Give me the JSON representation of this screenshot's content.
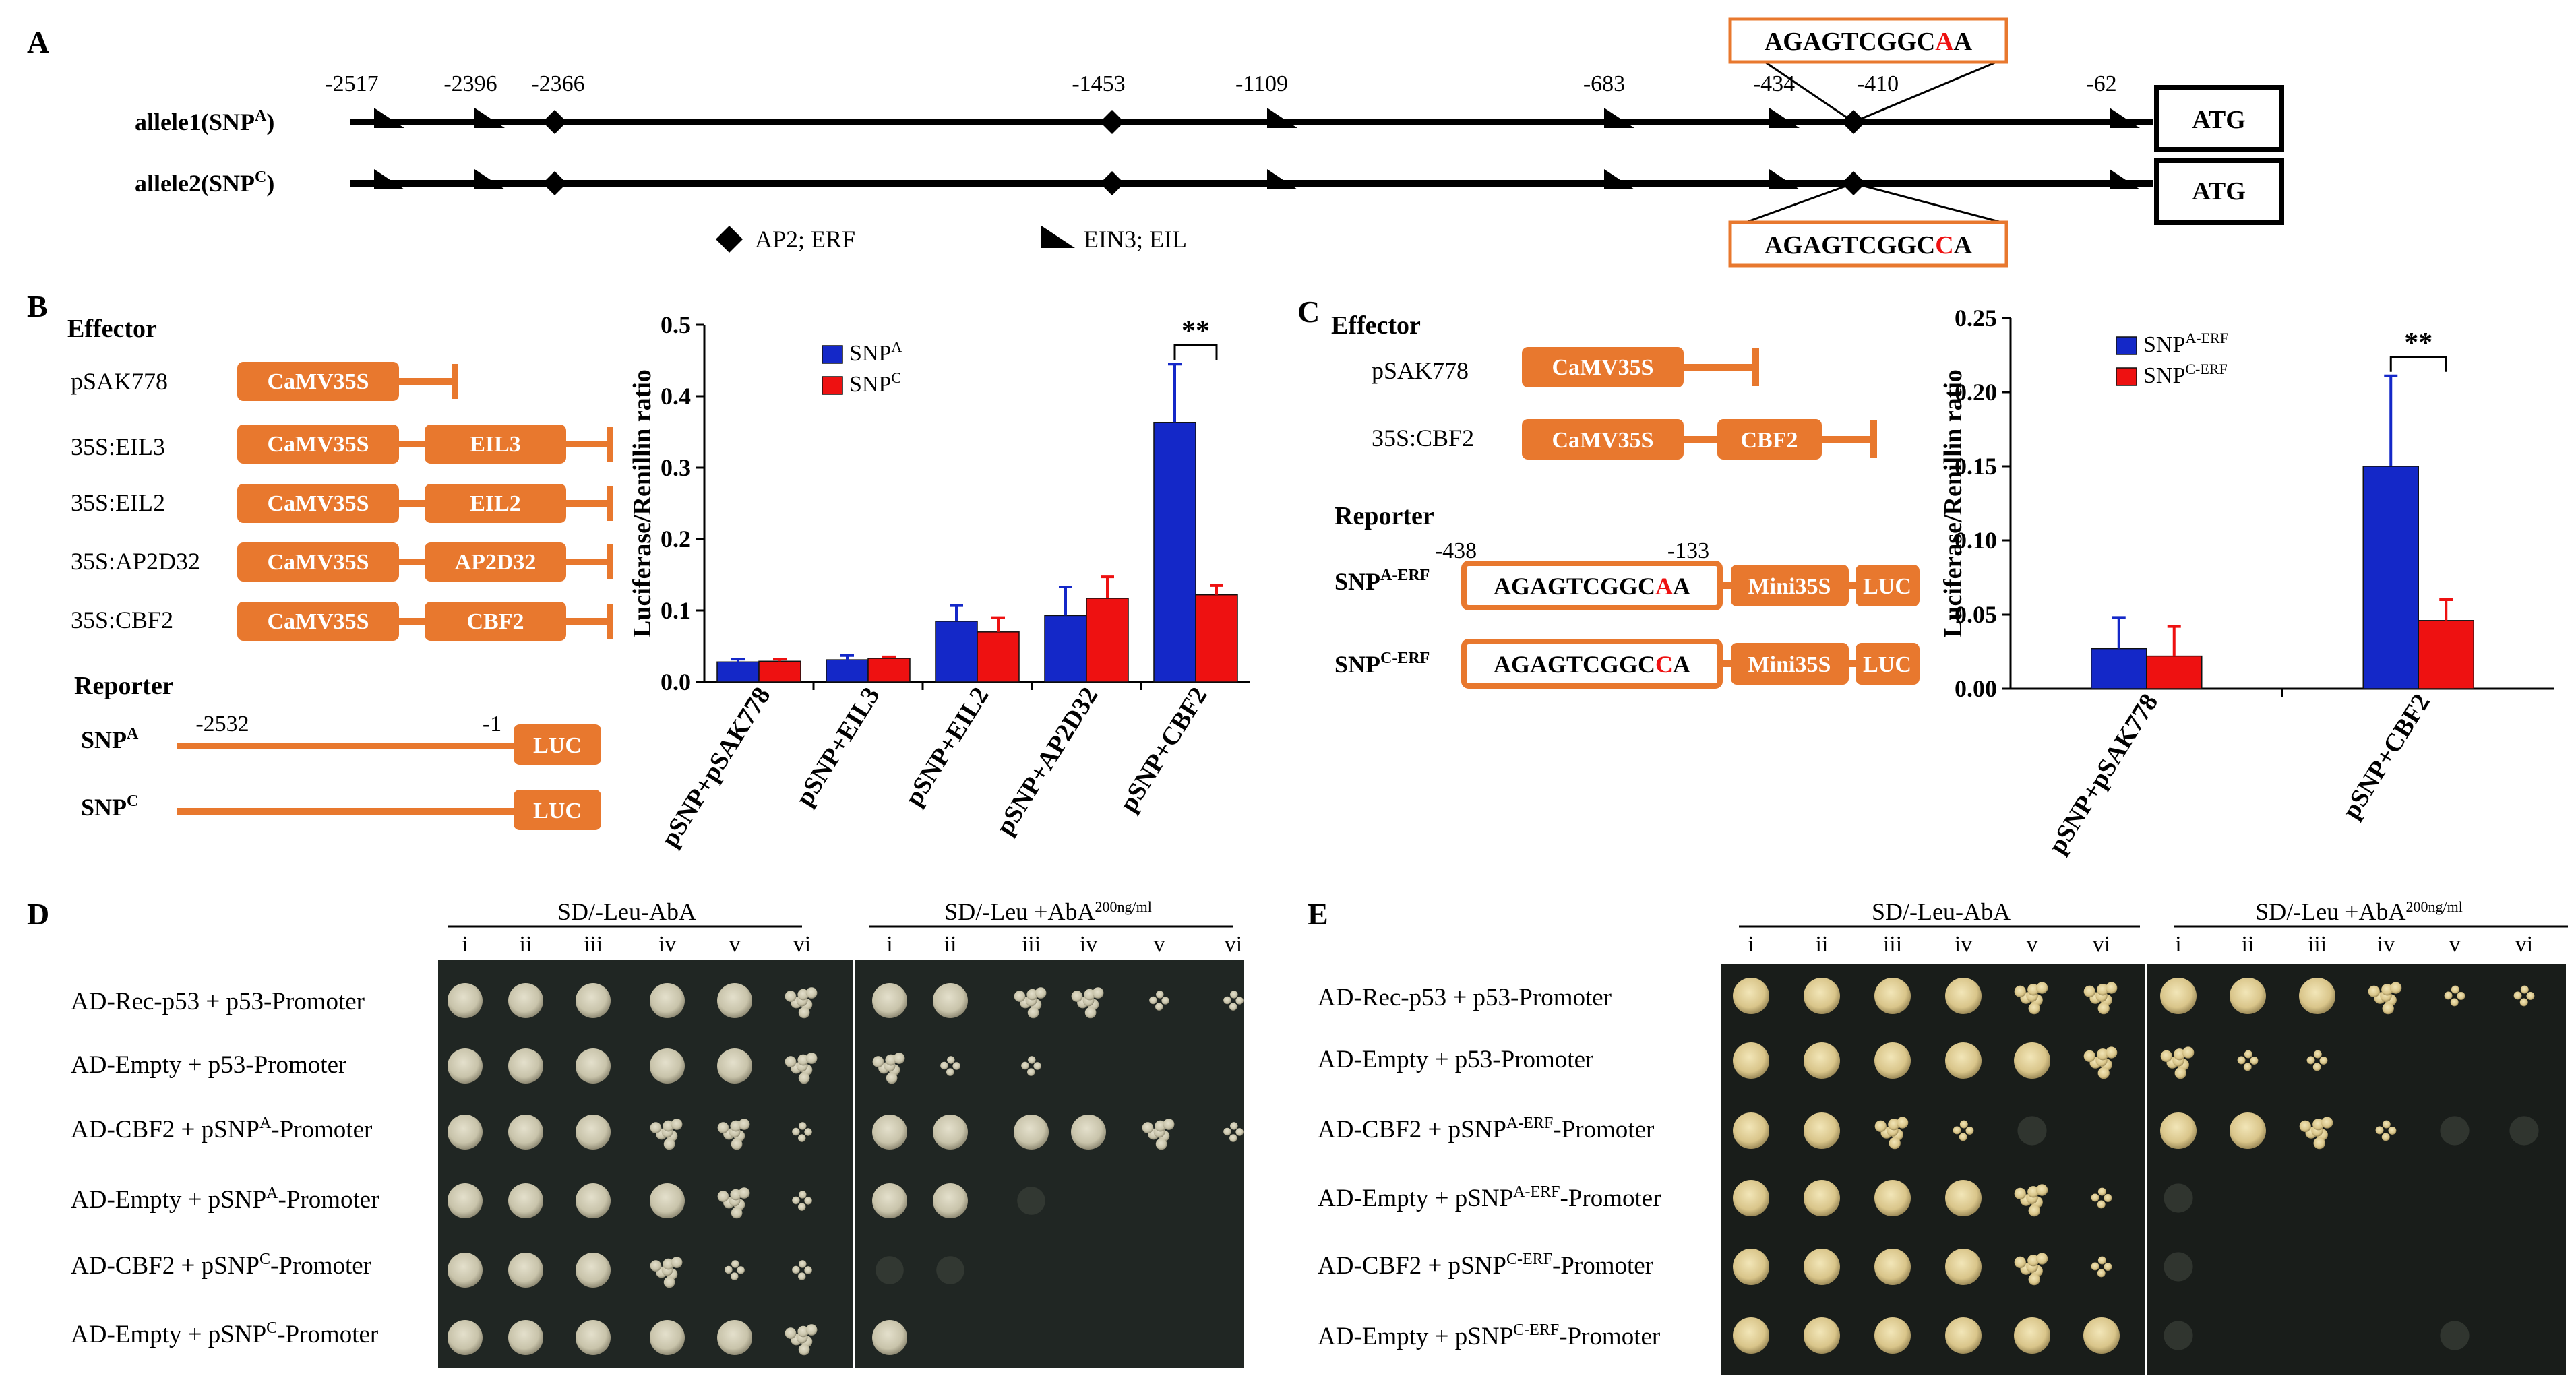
{
  "panel_letters": {
    "a": "A",
    "b": "B",
    "c": "C",
    "d": "D",
    "e": "E"
  },
  "panelA": {
    "allele1_label": "allele1(SNP",
    "allele1_sup": "A",
    "allele2_label": "allele2(SNP",
    "allele2_sup": "C",
    "close_paren": ")",
    "positions": [
      "-2517",
      "-2396",
      "-2366",
      "-1453",
      "-1109",
      "-683",
      "-434",
      "-410",
      "-62"
    ],
    "atg": "ATG",
    "seq_prefix": "AGAGTCGGC",
    "seq_allele1_snp": "A",
    "seq_allele1_tail": "A",
    "seq_allele2_snp": "C",
    "seq_allele2_tail": "A",
    "legend_ap2": "AP2; ERF",
    "legend_ein3": "EIN3; EIL"
  },
  "panelB": {
    "effector_title": "Effector",
    "reporter_title": "Reporter",
    "effectors": [
      {
        "name": "pSAK778",
        "promoter": "CaMV35S",
        "gene": ""
      },
      {
        "name": "35S:EIL3",
        "promoter": "CaMV35S",
        "gene": "EIL3"
      },
      {
        "name": "35S:EIL2",
        "promoter": "CaMV35S",
        "gene": "EIL2"
      },
      {
        "name": "35S:AP2D32",
        "promoter": "CaMV35S",
        "gene": "AP2D32"
      },
      {
        "name": "35S:CBF2",
        "promoter": "CaMV35S",
        "gene": "CBF2"
      }
    ],
    "reporter_snpA": "SNP",
    "reporter_snpA_sup": "A",
    "reporter_snpC": "SNP",
    "reporter_snpC_sup": "C",
    "reporter_start": "-2532",
    "reporter_end": "-1",
    "luc": "LUC"
  },
  "panelC": {
    "effector_title": "Effector",
    "reporter_title": "Reporter",
    "effectors": [
      {
        "name": "pSAK778",
        "promoter": "CaMV35S",
        "gene": ""
      },
      {
        "name": "35S:CBF2",
        "promoter": "CaMV35S",
        "gene": "CBF2"
      }
    ],
    "pos_start": "-438",
    "pos_end": "-133",
    "rep1_name": "SNP",
    "rep1_sup": "A-ERF",
    "rep2_name": "SNP",
    "rep2_sup": "C-ERF",
    "mini": "Mini35S",
    "luc": "LUC"
  },
  "chart_data": [
    {
      "type": "bar",
      "ylabel": "Luciferase/Renillin ratio",
      "ylim": [
        0,
        0.5
      ],
      "yticks": [
        "0.0",
        "0.1",
        "0.2",
        "0.3",
        "0.4",
        "0.5"
      ],
      "categories": [
        "pSNP+pSAK778",
        "pSNP+EIL3",
        "pSNP+EIL2",
        "pSNP+AP2D32",
        "pSNP+CBF2"
      ],
      "series": [
        {
          "name": "SNP",
          "sup": "A",
          "color": "#1428c8",
          "values": [
            0.028,
            0.031,
            0.085,
            0.093,
            0.363
          ],
          "errors": [
            0.004,
            0.006,
            0.022,
            0.04,
            0.082
          ]
        },
        {
          "name": "SNP",
          "sup": "C",
          "color": "#ee1111",
          "values": [
            0.029,
            0.033,
            0.07,
            0.117,
            0.122
          ],
          "errors": [
            0.003,
            0.002,
            0.02,
            0.03,
            0.013
          ]
        }
      ],
      "significance": {
        "category": "pSNP+CBF2",
        "label": "**"
      }
    },
    {
      "type": "bar",
      "ylabel": "Luciferase/Renillin ratio",
      "ylim": [
        0,
        0.25
      ],
      "yticks": [
        "0.00",
        "0.05",
        "0.10",
        "0.15",
        "0.20",
        "0.25"
      ],
      "categories": [
        "pSNP+pSAK778",
        "pSNP+CBF2"
      ],
      "series": [
        {
          "name": "SNP",
          "sup": "A-ERF",
          "color": "#1428c8",
          "values": [
            0.027,
            0.15
          ],
          "errors": [
            0.021,
            0.061
          ]
        },
        {
          "name": "SNP",
          "sup": "C-ERF",
          "color": "#ee1111",
          "values": [
            0.022,
            0.046
          ],
          "errors": [
            0.02,
            0.014
          ]
        }
      ],
      "significance": {
        "category": "pSNP+CBF2",
        "label": "**"
      }
    }
  ],
  "panelD": {
    "header_left": "SD/-Leu-AbA",
    "header_right": "SD/-Leu +AbA",
    "header_right_sup": "200ng/ml",
    "dilutions": [
      "i",
      "ii",
      "iii",
      "iv",
      "v",
      "vi"
    ],
    "rows": [
      {
        "pre": "AD-Rec-p53 + p53-Promoter",
        "sup": "",
        "post": ""
      },
      {
        "pre": "AD-Empty + p53-Promoter",
        "sup": "",
        "post": ""
      },
      {
        "pre": "AD-CBF2 + pSNP",
        "sup": "A",
        "post": "-Promoter"
      },
      {
        "pre": "AD-Empty + pSNP",
        "sup": "A",
        "post": "-Promoter"
      },
      {
        "pre": "AD-CBF2  + pSNP",
        "sup": "C",
        "post": "-Promoter"
      },
      {
        "pre": "AD-Empty + pSNP",
        "sup": "C",
        "post": "-Promoter"
      }
    ]
  },
  "panelE": {
    "header_left": "SD/-Leu-AbA",
    "header_right": "SD/-Leu +AbA",
    "header_right_sup": "200ng/ml",
    "dilutions": [
      "i",
      "ii",
      "iii",
      "iv",
      "v",
      "vi"
    ],
    "rows": [
      {
        "pre": "AD-Rec-p53 + p53-Promoter",
        "sup": "",
        "post": ""
      },
      {
        "pre": "AD-Empty + p53-Promoter",
        "sup": "",
        "post": ""
      },
      {
        "pre": "AD-CBF2 + pSNP",
        "sup": "A-ERF",
        "post": "-Promoter"
      },
      {
        "pre": "AD-Empty + pSNP",
        "sup": "A-ERF",
        "post": "-Promoter"
      },
      {
        "pre": "AD-CBF2  + pSNP",
        "sup": "C-ERF",
        "post": "-Promoter"
      },
      {
        "pre": "AD-Empty + pSNP",
        "sup": "C-ERF",
        "post": "-Promoter"
      }
    ]
  }
}
